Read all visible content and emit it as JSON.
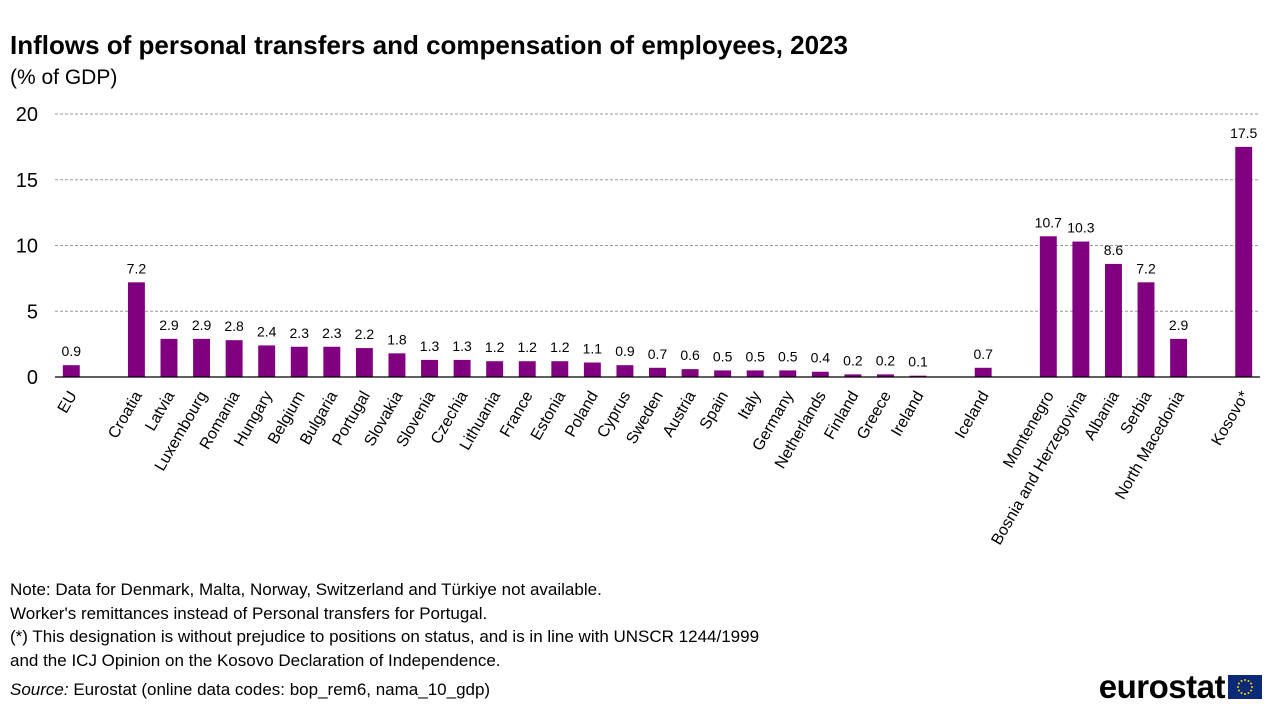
{
  "title": "Inflows of personal transfers and compensation of employees, 2023",
  "subtitle": "(% of GDP)",
  "chart_data": {
    "type": "bar",
    "title": "Inflows of personal transfers and compensation of employees, 2023",
    "ylabel": "(% of GDP)",
    "xlabel": "",
    "ylim": [
      0,
      20
    ],
    "yticks": [
      0,
      5,
      10,
      15,
      20
    ],
    "grid": true,
    "bar_color": "#800080",
    "categories": [
      "EU",
      "",
      "Croatia",
      "Latvia",
      "Luxembourg",
      "Romania",
      "Hungary",
      "Belgium",
      "Bulgaria",
      "Portugal",
      "Slovakia",
      "Slovenia",
      "Czechia",
      "Lithuania",
      "France",
      "Estonia",
      "Poland",
      "Cyprus",
      "Sweden",
      "Austria",
      "Spain",
      "Italy",
      "Germany",
      "Netherlands",
      "Finland",
      "Greece",
      "Ireland",
      "",
      "Iceland",
      "",
      "Montenegro",
      "Bosnia and Herzegovina",
      "Albania",
      "Serbia",
      "North Macedonia",
      "",
      "Kosovo*"
    ],
    "values": [
      0.9,
      null,
      7.2,
      2.9,
      2.9,
      2.8,
      2.4,
      2.3,
      2.3,
      2.2,
      1.8,
      1.3,
      1.3,
      1.2,
      1.2,
      1.2,
      1.1,
      0.9,
      0.7,
      0.6,
      0.5,
      0.5,
      0.5,
      0.4,
      0.2,
      0.2,
      0.1,
      null,
      0.7,
      null,
      10.7,
      10.3,
      8.6,
      7.2,
      2.9,
      null,
      17.5
    ],
    "data_labels": [
      "0.9",
      "",
      "7.2",
      "2.9",
      "2.9",
      "2.8",
      "2.4",
      "2.3",
      "2.3",
      "2.2",
      "1.8",
      "1.3",
      "1.3",
      "1.2",
      "1.2",
      "1.2",
      "1.1",
      "0.9",
      "0.7",
      "0.6",
      "0.5",
      "0.5",
      "0.5",
      "0.4",
      "0.2",
      "0.2",
      "0.1",
      "",
      "0.7",
      "",
      "10.7",
      "10.3",
      "8.6",
      "7.2",
      "2.9",
      "",
      "17.5"
    ]
  },
  "notes": [
    "Note: Data for Denmark, Malta, Norway, Switzerland and Türkiye not available.",
    "Worker's remittances instead of Personal transfers for Portugal.",
    "(*) This designation is without prejudice to positions on status, and is in line with UNSCR 1244/1999",
    "and the ICJ Opinion on the Kosovo Declaration of Independence."
  ],
  "source": {
    "label": "Source:",
    "text": " Eurostat (online data codes: bop_rem6, nama_10_gdp)"
  },
  "logo": {
    "text": "eurostat",
    "icon": "eu-flag-icon"
  }
}
